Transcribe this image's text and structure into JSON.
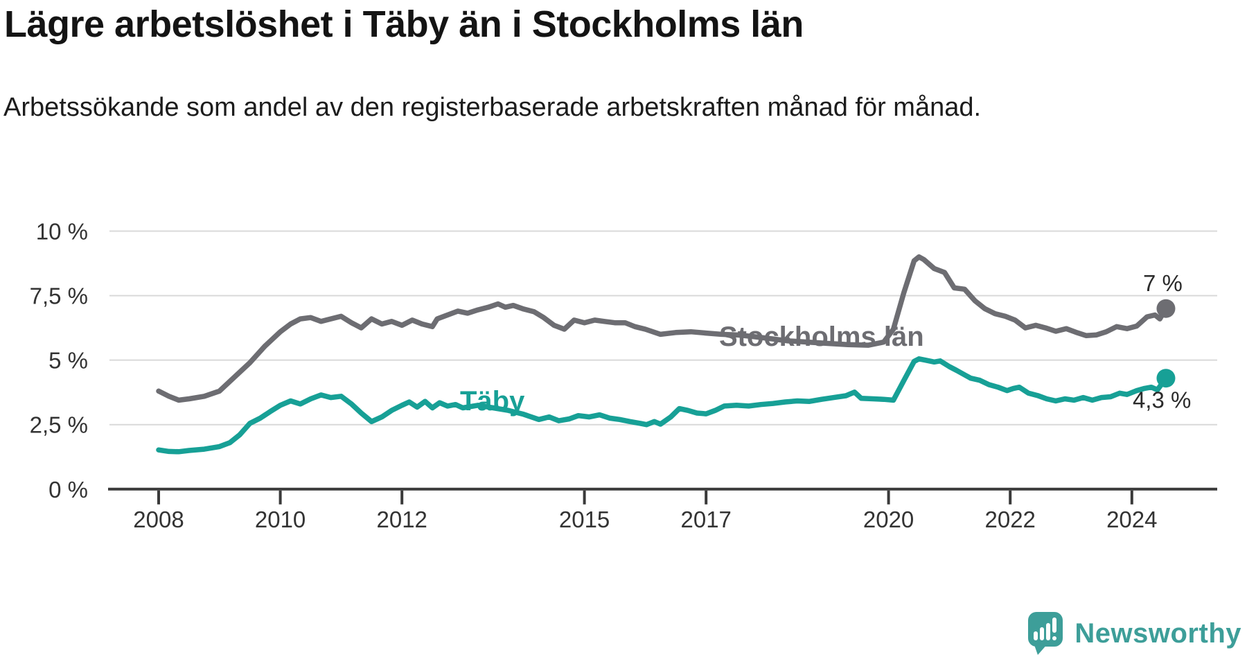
{
  "header": {
    "title": "Lägre arbetslöshet i Täby än i Stockholms län",
    "subtitle": "Arbetssökande som andel av den registerbaserade arbetskraften månad för månad."
  },
  "footer": {
    "brand": "Newsworthy"
  },
  "chart_data": {
    "type": "line",
    "title": "Lägre arbetslöshet i Täby än i Stockholms län",
    "subtitle": "Arbetssökande som andel av den registerbaserade arbetskraften månad för månad.",
    "xlabel": "",
    "ylabel": "",
    "ylim": [
      0,
      10
    ],
    "xlim": [
      2008,
      2025.4
    ],
    "grid": true,
    "legend_position": "inline-on-line",
    "y_ticks": [
      {
        "v": 0,
        "label": "0 %"
      },
      {
        "v": 2.5,
        "label": "2,5 %"
      },
      {
        "v": 5,
        "label": "5 %"
      },
      {
        "v": 7.5,
        "label": "7,5 %"
      },
      {
        "v": 10,
        "label": "10 %"
      }
    ],
    "x_ticks": [
      {
        "t": 2008,
        "label": "2008"
      },
      {
        "t": 2010,
        "label": "2010"
      },
      {
        "t": 2012,
        "label": "2012"
      },
      {
        "t": 2015,
        "label": "2015"
      },
      {
        "t": 2017,
        "label": "2017"
      },
      {
        "t": 2020,
        "label": "2020"
      },
      {
        "t": 2022,
        "label": "2022"
      },
      {
        "t": 2024,
        "label": "2024"
      }
    ],
    "series": [
      {
        "name": "Stockholms län",
        "color": "#6d6d72",
        "end_value": 7.0,
        "end_label": "7 %",
        "points": [
          [
            2008.0,
            3.8
          ],
          [
            2008.17,
            3.6
          ],
          [
            2008.33,
            3.45
          ],
          [
            2008.5,
            3.5
          ],
          [
            2008.75,
            3.6
          ],
          [
            2009.0,
            3.8
          ],
          [
            2009.25,
            4.35
          ],
          [
            2009.5,
            4.9
          ],
          [
            2009.75,
            5.55
          ],
          [
            2010.0,
            6.1
          ],
          [
            2010.17,
            6.4
          ],
          [
            2010.33,
            6.6
          ],
          [
            2010.5,
            6.65
          ],
          [
            2010.67,
            6.5
          ],
          [
            2010.83,
            6.6
          ],
          [
            2011.0,
            6.7
          ],
          [
            2011.17,
            6.45
          ],
          [
            2011.33,
            6.25
          ],
          [
            2011.5,
            6.6
          ],
          [
            2011.67,
            6.4
          ],
          [
            2011.83,
            6.5
          ],
          [
            2012.0,
            6.35
          ],
          [
            2012.17,
            6.55
          ],
          [
            2012.33,
            6.4
          ],
          [
            2012.5,
            6.3
          ],
          [
            2012.58,
            6.6
          ],
          [
            2012.75,
            6.75
          ],
          [
            2012.92,
            6.9
          ],
          [
            2013.08,
            6.82
          ],
          [
            2013.25,
            6.95
          ],
          [
            2013.42,
            7.05
          ],
          [
            2013.58,
            7.18
          ],
          [
            2013.7,
            7.05
          ],
          [
            2013.83,
            7.12
          ],
          [
            2014.0,
            6.98
          ],
          [
            2014.17,
            6.88
          ],
          [
            2014.33,
            6.65
          ],
          [
            2014.5,
            6.35
          ],
          [
            2014.67,
            6.2
          ],
          [
            2014.83,
            6.55
          ],
          [
            2015.0,
            6.45
          ],
          [
            2015.17,
            6.55
          ],
          [
            2015.33,
            6.5
          ],
          [
            2015.5,
            6.45
          ],
          [
            2015.67,
            6.45
          ],
          [
            2015.83,
            6.3
          ],
          [
            2016.0,
            6.2
          ],
          [
            2016.25,
            6.0
          ],
          [
            2016.5,
            6.07
          ],
          [
            2016.75,
            6.1
          ],
          [
            2017.0,
            6.05
          ],
          [
            2017.25,
            6.0
          ],
          [
            2017.5,
            5.98
          ],
          [
            2017.75,
            5.92
          ],
          [
            2018.0,
            5.85
          ],
          [
            2018.33,
            5.75
          ],
          [
            2018.67,
            5.7
          ],
          [
            2019.0,
            5.65
          ],
          [
            2019.33,
            5.6
          ],
          [
            2019.67,
            5.58
          ],
          [
            2019.92,
            5.7
          ],
          [
            2020.08,
            6.2
          ],
          [
            2020.25,
            7.6
          ],
          [
            2020.42,
            8.85
          ],
          [
            2020.5,
            9.0
          ],
          [
            2020.58,
            8.9
          ],
          [
            2020.75,
            8.55
          ],
          [
            2020.92,
            8.4
          ],
          [
            2021.08,
            7.8
          ],
          [
            2021.25,
            7.75
          ],
          [
            2021.42,
            7.3
          ],
          [
            2021.58,
            7.0
          ],
          [
            2021.75,
            6.8
          ],
          [
            2021.92,
            6.7
          ],
          [
            2022.08,
            6.55
          ],
          [
            2022.25,
            6.25
          ],
          [
            2022.42,
            6.35
          ],
          [
            2022.58,
            6.25
          ],
          [
            2022.75,
            6.12
          ],
          [
            2022.92,
            6.22
          ],
          [
            2023.08,
            6.08
          ],
          [
            2023.25,
            5.95
          ],
          [
            2023.42,
            5.98
          ],
          [
            2023.58,
            6.1
          ],
          [
            2023.75,
            6.3
          ],
          [
            2023.92,
            6.22
          ],
          [
            2024.08,
            6.32
          ],
          [
            2024.25,
            6.68
          ],
          [
            2024.38,
            6.75
          ],
          [
            2024.46,
            6.6
          ],
          [
            2024.56,
            7.0
          ]
        ]
      },
      {
        "name": "Täby",
        "color": "#17a096",
        "end_value": 4.3,
        "end_label": "4,3 %",
        "points": [
          [
            2008.0,
            1.52
          ],
          [
            2008.17,
            1.46
          ],
          [
            2008.33,
            1.45
          ],
          [
            2008.5,
            1.5
          ],
          [
            2008.75,
            1.55
          ],
          [
            2009.0,
            1.65
          ],
          [
            2009.17,
            1.8
          ],
          [
            2009.33,
            2.1
          ],
          [
            2009.5,
            2.55
          ],
          [
            2009.67,
            2.75
          ],
          [
            2009.83,
            3.0
          ],
          [
            2010.0,
            3.25
          ],
          [
            2010.17,
            3.42
          ],
          [
            2010.33,
            3.3
          ],
          [
            2010.5,
            3.5
          ],
          [
            2010.67,
            3.65
          ],
          [
            2010.83,
            3.55
          ],
          [
            2011.0,
            3.6
          ],
          [
            2011.17,
            3.3
          ],
          [
            2011.33,
            2.95
          ],
          [
            2011.5,
            2.62
          ],
          [
            2011.67,
            2.8
          ],
          [
            2011.83,
            3.05
          ],
          [
            2012.0,
            3.25
          ],
          [
            2012.12,
            3.38
          ],
          [
            2012.25,
            3.18
          ],
          [
            2012.38,
            3.4
          ],
          [
            2012.5,
            3.15
          ],
          [
            2012.62,
            3.35
          ],
          [
            2012.75,
            3.22
          ],
          [
            2012.88,
            3.28
          ],
          [
            2013.0,
            3.15
          ],
          [
            2013.25,
            3.25
          ],
          [
            2013.5,
            3.15
          ],
          [
            2013.75,
            3.05
          ],
          [
            2014.0,
            2.9
          ],
          [
            2014.25,
            2.7
          ],
          [
            2014.42,
            2.8
          ],
          [
            2014.58,
            2.65
          ],
          [
            2014.75,
            2.72
          ],
          [
            2014.9,
            2.85
          ],
          [
            2015.08,
            2.8
          ],
          [
            2015.25,
            2.88
          ],
          [
            2015.42,
            2.75
          ],
          [
            2015.58,
            2.7
          ],
          [
            2015.75,
            2.62
          ],
          [
            2015.92,
            2.55
          ],
          [
            2016.02,
            2.5
          ],
          [
            2016.15,
            2.62
          ],
          [
            2016.25,
            2.52
          ],
          [
            2016.42,
            2.8
          ],
          [
            2016.56,
            3.12
          ],
          [
            2016.7,
            3.05
          ],
          [
            2016.85,
            2.95
          ],
          [
            2017.0,
            2.92
          ],
          [
            2017.15,
            3.05
          ],
          [
            2017.3,
            3.22
          ],
          [
            2017.5,
            3.25
          ],
          [
            2017.7,
            3.22
          ],
          [
            2017.9,
            3.28
          ],
          [
            2018.1,
            3.32
          ],
          [
            2018.3,
            3.38
          ],
          [
            2018.5,
            3.42
          ],
          [
            2018.7,
            3.4
          ],
          [
            2018.9,
            3.48
          ],
          [
            2019.1,
            3.55
          ],
          [
            2019.3,
            3.62
          ],
          [
            2019.44,
            3.76
          ],
          [
            2019.55,
            3.52
          ],
          [
            2019.75,
            3.5
          ],
          [
            2019.92,
            3.48
          ],
          [
            2020.08,
            3.45
          ],
          [
            2020.25,
            4.2
          ],
          [
            2020.42,
            4.95
          ],
          [
            2020.5,
            5.05
          ],
          [
            2020.6,
            5.0
          ],
          [
            2020.75,
            4.93
          ],
          [
            2020.85,
            4.97
          ],
          [
            2021.0,
            4.75
          ],
          [
            2021.12,
            4.6
          ],
          [
            2021.35,
            4.3
          ],
          [
            2021.5,
            4.22
          ],
          [
            2021.65,
            4.05
          ],
          [
            2021.8,
            3.95
          ],
          [
            2021.95,
            3.82
          ],
          [
            2022.05,
            3.9
          ],
          [
            2022.15,
            3.95
          ],
          [
            2022.3,
            3.72
          ],
          [
            2022.45,
            3.63
          ],
          [
            2022.6,
            3.5
          ],
          [
            2022.75,
            3.42
          ],
          [
            2022.9,
            3.5
          ],
          [
            2023.05,
            3.45
          ],
          [
            2023.2,
            3.55
          ],
          [
            2023.35,
            3.45
          ],
          [
            2023.5,
            3.55
          ],
          [
            2023.65,
            3.58
          ],
          [
            2023.8,
            3.72
          ],
          [
            2023.92,
            3.67
          ],
          [
            2024.08,
            3.82
          ],
          [
            2024.2,
            3.9
          ],
          [
            2024.32,
            3.95
          ],
          [
            2024.42,
            3.85
          ],
          [
            2024.56,
            4.3
          ]
        ]
      }
    ]
  }
}
